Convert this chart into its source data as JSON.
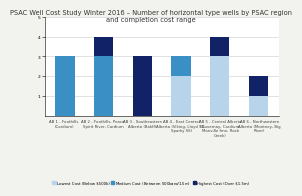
{
  "title": "PSAC Well Cost Study Winter 2016 – Number of horizontal type wells by PSAC region\nand completion cost range",
  "categories": [
    "AB 1 - Foothills\n(Cardium)",
    "AB 2 - Foothills, Peace\nSpirit River, Cardium",
    "AB 3 - Southeastern\nAlberta (Bakff)",
    "AB 4 - East Central\nAlberta (Viking, Lloyd SS,\nSparky SS)",
    "AB 5 - Central Alberta\n(Duvernay, Cardium,\nManville fmn, Rock\nCreek)",
    "AB 6 - Northwestern\nAlberta (Montney, Big\nRiver)"
  ],
  "lowest_cost": [
    0,
    0,
    0,
    2,
    3,
    1
  ],
  "medium_cost": [
    3,
    3,
    0,
    1,
    0,
    0
  ],
  "highest_cost": [
    0,
    1,
    3,
    0,
    1,
    1
  ],
  "color_lowest": "#b8d4ea",
  "color_medium": "#3a8fc4",
  "color_highest": "#112266",
  "ylim": [
    0,
    5
  ],
  "yticks": [
    1,
    2,
    3,
    4,
    5
  ],
  "legend_lowest": "Lowest Cost (Below $500k)",
  "legend_medium": "Medium Cost (Between $500k and $1.5m)",
  "legend_highest": "Highest Cost (Over $1.5m)",
  "background_color": "#f2f2ee",
  "plot_bg": "#ffffff",
  "title_fontsize": 4.8,
  "tick_fontsize": 3.2,
  "legend_fontsize": 2.8,
  "bar_width": 0.5
}
